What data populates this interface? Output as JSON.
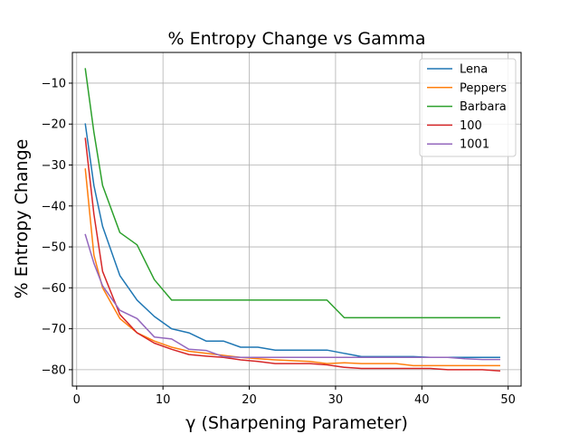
{
  "chart_data": {
    "type": "line",
    "title": "% Entropy Change vs Gamma",
    "xlabel": "γ (Sharpening Parameter)",
    "ylabel": "% Entropy Change",
    "xlim": [
      -0.5,
      51.5
    ],
    "ylim": [
      -84,
      -2.5
    ],
    "xticks": [
      0,
      10,
      20,
      30,
      40,
      50
    ],
    "yticks": [
      -80,
      -70,
      -60,
      -50,
      -40,
      -30,
      -20,
      -10
    ],
    "grid": true,
    "legend_position": "top-right",
    "x": [
      1,
      2,
      3,
      5,
      7,
      9,
      11,
      13,
      15,
      17,
      19,
      21,
      23,
      25,
      27,
      29,
      31,
      33,
      35,
      37,
      39,
      41,
      43,
      45,
      47,
      49
    ],
    "series": [
      {
        "name": "Lena",
        "color": "#1f77b4",
        "values": [
          -20,
          -35,
          -45,
          -57,
          -63,
          -67,
          -70,
          -71,
          -73,
          -73,
          -74.5,
          -74.5,
          -75.2,
          -75.2,
          -75.2,
          -75.2,
          -76,
          -76.8,
          -76.8,
          -76.8,
          -76.8,
          -77,
          -77,
          -77,
          -77,
          -77
        ]
      },
      {
        "name": "Peppers",
        "color": "#ff7f0e",
        "values": [
          -31,
          -52,
          -60,
          -67.5,
          -71,
          -73,
          -74.5,
          -75.5,
          -76,
          -76.5,
          -77,
          -77.3,
          -77.6,
          -77.8,
          -78,
          -78.5,
          -78.3,
          -78.5,
          -78.5,
          -78.5,
          -79,
          -79,
          -79,
          -79,
          -79,
          -79
        ]
      },
      {
        "name": "Barbara",
        "color": "#2ca02c",
        "values": [
          -6.5,
          -22,
          -35,
          -46.5,
          -49.5,
          -58,
          -63,
          -63,
          -63,
          -63,
          -63,
          -63,
          -63,
          -63,
          -63,
          -63,
          -67.3,
          -67.3,
          -67.3,
          -67.3,
          -67.3,
          -67.3,
          -67.3,
          -67.3,
          -67.3,
          -67.3
        ]
      },
      {
        "name": "100",
        "color": "#d62728",
        "values": [
          -23.5,
          -42,
          -56,
          -66.5,
          -71,
          -73.5,
          -75,
          -76.3,
          -76.7,
          -77,
          -77.6,
          -78,
          -78.5,
          -78.5,
          -78.5,
          -78.8,
          -79.4,
          -79.7,
          -79.7,
          -79.7,
          -79.7,
          -79.7,
          -80,
          -80,
          -80,
          -80.3
        ]
      },
      {
        "name": "1001",
        "color": "#9467bd",
        "values": [
          -47,
          -54,
          -59.5,
          -65.5,
          -67.5,
          -72,
          -72.5,
          -75,
          -75.3,
          -76.8,
          -77,
          -77,
          -77,
          -77,
          -77,
          -77,
          -77,
          -77,
          -77,
          -77,
          -77,
          -77,
          -77,
          -77.3,
          -77.5,
          -77.5
        ]
      }
    ]
  }
}
